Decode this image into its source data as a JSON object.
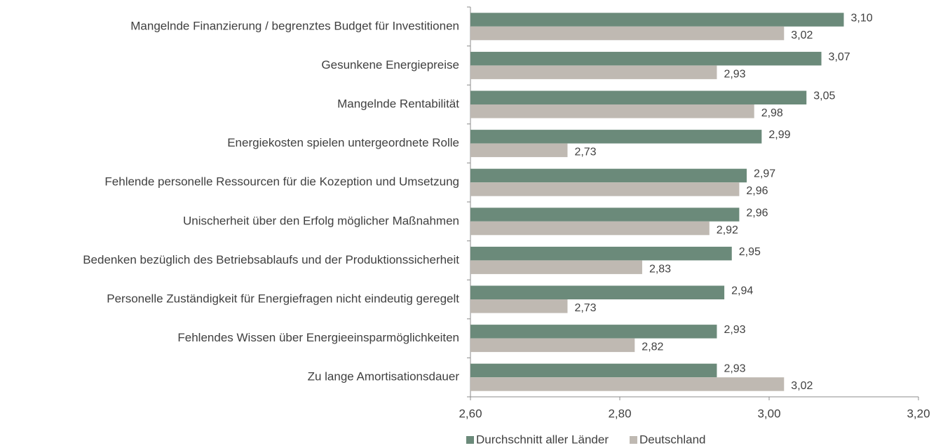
{
  "chart_data": {
    "type": "bar",
    "orientation": "horizontal",
    "categories": [
      "Mangelnde Finanzierung / begrenztes Budget für Investitionen",
      "Gesunkene Energiepreise",
      "Mangelnde Rentabilität",
      "Energiekosten spielen untergeordnete Rolle",
      "Fehlende personelle Ressourcen für die Kozeption und Umsetzung",
      "Unischerheit über den Erfolg möglicher Maßnahmen",
      "Bedenken bezüglich des Betriebsablaufs und der Produktionssicherheit",
      "Personelle Zuständigkeit für Energiefragen nicht eindeutig geregelt",
      "Fehlendes Wissen über Energieeinsparmöglichkeiten",
      "Zu lange Amortisationsdauer"
    ],
    "series": [
      {
        "name": "Durchschnitt aller Länder",
        "color": "#6b8a7a",
        "values": [
          3.1,
          3.07,
          3.05,
          2.99,
          2.97,
          2.96,
          2.95,
          2.94,
          2.93,
          2.93
        ],
        "value_labels": [
          "3,10",
          "3,07",
          "3,05",
          "2,99",
          "2,97",
          "2,96",
          "2,95",
          "2,94",
          "2,93",
          "2,93"
        ]
      },
      {
        "name": "Deutschland",
        "color": "#bfb9b2",
        "values": [
          3.02,
          2.93,
          2.98,
          2.73,
          2.96,
          2.92,
          2.83,
          2.73,
          2.82,
          3.02
        ],
        "value_labels": [
          "3,02",
          "2,93",
          "2,98",
          "2,73",
          "2,96",
          "2,92",
          "2,83",
          "2,73",
          "2,82",
          "3,02"
        ]
      }
    ],
    "xlim": [
      2.6,
      3.2
    ],
    "xticks": [
      {
        "value": 2.6,
        "label": "2,60"
      },
      {
        "value": 2.8,
        "label": "2,80"
      },
      {
        "value": 3.0,
        "label": "3,00"
      },
      {
        "value": 3.2,
        "label": "3,20"
      }
    ],
    "legend": "bottom"
  }
}
